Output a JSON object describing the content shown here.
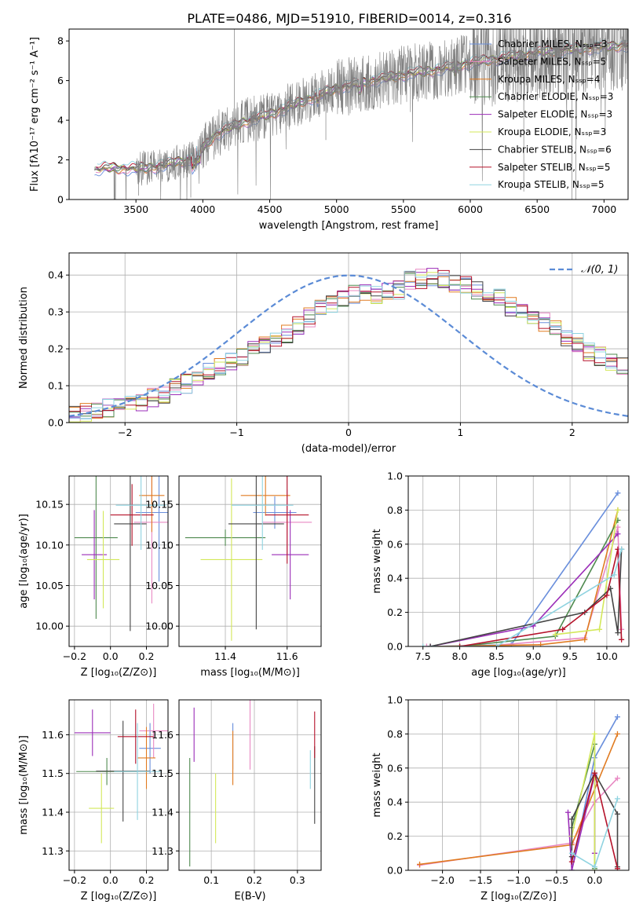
{
  "figure": {
    "title": "PLATE=0486, MJD=51910, FIBERID=0014, z=0.316"
  },
  "colors": {
    "Chabrier MILES": "#6a8fdc",
    "Salpeter MILES": "#e889c3",
    "Kroupa MILES": "#e07b21",
    "Chabrier ELODIE": "#4f8a4f",
    "Salpeter ELODIE": "#9b2db8",
    "Kroupa ELODIE": "#d3e85a",
    "Chabrier STELIB": "#444444",
    "Salpeter STELIB": "#b5122a",
    "Kroupa STELIB": "#8fd3e0",
    "data": "#808080",
    "normal": "#5b8bd6",
    "grid": "#b0b0b0"
  },
  "chart_data": [
    {
      "type": "line",
      "panel": "spectrum",
      "xlabel": "wavelength [Angstrom, rest frame]",
      "ylabel": "Flux [fλ10⁻¹⁷ erg cm⁻² s⁻¹ A⁻¹]",
      "xlim": [
        3000,
        7180
      ],
      "ylim": [
        0,
        8.6
      ],
      "xticks": [
        3500,
        4000,
        4500,
        5000,
        5500,
        6000,
        6500,
        7000
      ],
      "yticks": [
        0,
        2,
        4,
        6,
        8
      ],
      "continuum_x": [
        3190,
        3300,
        3500,
        3700,
        3800,
        3900,
        3950,
        4000,
        4100,
        4300,
        4500,
        4800,
        5000,
        5200,
        5500,
        5800,
        6000,
        6300,
        6600,
        6800,
        7000,
        7180
      ],
      "continuum_y": [
        1.5,
        1.6,
        1.55,
        1.7,
        1.9,
        2.0,
        2.3,
        2.6,
        3.3,
        3.9,
        4.3,
        5.1,
        5.6,
        5.9,
        6.3,
        6.6,
        6.9,
        7.2,
        7.5,
        7.6,
        7.7,
        7.8
      ],
      "legend": [
        {
          "label": "Chabrier MILES, Nₛₛₚ=3",
          "model": "Chabrier MILES"
        },
        {
          "label": "Salpeter MILES, Nₛₛₚ=5",
          "model": "Salpeter MILES"
        },
        {
          "label": "Kroupa MILES, Nₛₛₚ=4",
          "model": "Kroupa MILES"
        },
        {
          "label": "Chabrier ELODIE, Nₛₛₚ=3",
          "model": "Chabrier ELODIE"
        },
        {
          "label": "Salpeter ELODIE, Nₛₛₚ=3",
          "model": "Salpeter ELODIE"
        },
        {
          "label": "Kroupa ELODIE, Nₛₛₚ=3",
          "model": "Kroupa ELODIE"
        },
        {
          "label": "Chabrier STELIB, Nₛₛₚ=6",
          "model": "Chabrier STELIB"
        },
        {
          "label": "Salpeter STELIB, Nₛₛₚ=5",
          "model": "Salpeter STELIB"
        },
        {
          "label": "Kroupa STELIB, Nₛₛₚ=5",
          "model": "Kroupa STELIB"
        }
      ],
      "grid": false
    },
    {
      "type": "histogram",
      "panel": "residuals",
      "xlabel": "(data-model)/error",
      "ylabel": "Normed distribution",
      "xlim": [
        -2.5,
        2.5
      ],
      "ylim": [
        0,
        0.46
      ],
      "xticks": [
        -2,
        -1,
        0,
        1,
        2
      ],
      "yticks": [
        0.0,
        0.1,
        0.2,
        0.3,
        0.4
      ],
      "legend": "𝒩(0, 1)",
      "bin_edges_start": -2.5,
      "bin_width": 0.1,
      "base_values": [
        0.025,
        0.03,
        0.035,
        0.037,
        0.04,
        0.05,
        0.058,
        0.066,
        0.078,
        0.092,
        0.105,
        0.12,
        0.135,
        0.15,
        0.165,
        0.18,
        0.195,
        0.21,
        0.225,
        0.242,
        0.262,
        0.285,
        0.305,
        0.322,
        0.338,
        0.35,
        0.355,
        0.35,
        0.35,
        0.36,
        0.385,
        0.39,
        0.395,
        0.39,
        0.38,
        0.37,
        0.36,
        0.35,
        0.335,
        0.315,
        0.3,
        0.285,
        0.27,
        0.255,
        0.235,
        0.215,
        0.195,
        0.178,
        0.162,
        0.148
      ],
      "grid": true
    },
    {
      "type": "errorbar",
      "panel": "age-vs-Z",
      "xlabel": "Z [log₁₀(Z/Z⊙)]",
      "ylabel": "age  [log₁₀(age/yr)]",
      "xlim": [
        -0.23,
        0.32
      ],
      "ylim": [
        9.975,
        10.185
      ],
      "xticks": [
        -0.2,
        0.0,
        0.2
      ],
      "yticks": [
        10.0,
        10.05,
        10.1,
        10.15
      ],
      "points": [
        {
          "model": "Chabrier MILES",
          "x": 0.27,
          "y": 10.14,
          "xerr": 0.13,
          "yerr": 0.085
        },
        {
          "model": "Salpeter MILES",
          "x": 0.23,
          "y": 10.128,
          "xerr": 0.1,
          "yerr": 0.1
        },
        {
          "model": "Kroupa MILES",
          "x": 0.23,
          "y": 10.161,
          "xerr": 0.07,
          "yerr": 0.045
        },
        {
          "model": "Chabrier ELODIE",
          "x": -0.08,
          "y": 10.109,
          "xerr": 0.12,
          "yerr": 0.1
        },
        {
          "model": "Salpeter ELODIE",
          "x": -0.09,
          "y": 10.088,
          "xerr": 0.07,
          "yerr": 0.055
        },
        {
          "model": "Kroupa ELODIE",
          "x": -0.04,
          "y": 10.082,
          "xerr": 0.09,
          "yerr": 0.06
        },
        {
          "model": "Chabrier STELIB",
          "x": 0.11,
          "y": 10.126,
          "xerr": 0.09,
          "yerr": 0.132
        },
        {
          "model": "Salpeter STELIB",
          "x": 0.12,
          "y": 10.137,
          "xerr": 0.12,
          "yerr": 0.038
        },
        {
          "model": "Kroupa STELIB",
          "x": 0.17,
          "y": 10.149,
          "xerr": 0.14,
          "yerr": 0.055
        }
      ],
      "grid": true
    },
    {
      "type": "errorbar",
      "panel": "age-vs-mass",
      "xlabel": "mass [log₁₀(M/M⊙)]",
      "ylabel": "",
      "xlim": [
        11.25,
        11.71
      ],
      "ylim": [
        9.975,
        10.185
      ],
      "xticks": [
        11.4,
        11.6
      ],
      "yticks": [
        10.0,
        10.05,
        10.1,
        10.15
      ],
      "points": [
        {
          "model": "Chabrier MILES",
          "x": 11.56,
          "y": 10.14,
          "xerr": 0.07,
          "yerr": 0.02
        },
        {
          "model": "Salpeter MILES",
          "x": 11.6,
          "y": 10.128,
          "xerr": 0.08,
          "yerr": 0.04
        },
        {
          "model": "Kroupa MILES",
          "x": 11.53,
          "y": 10.161,
          "xerr": 0.08,
          "yerr": 0.025
        },
        {
          "model": "Chabrier ELODIE",
          "x": 11.4,
          "y": 10.109,
          "xerr": 0.13,
          "yerr": 0.01
        },
        {
          "model": "Salpeter ELODIE",
          "x": 11.61,
          "y": 10.088,
          "xerr": 0.06,
          "yerr": 0.055
        },
        {
          "model": "Kroupa ELODIE",
          "x": 11.42,
          "y": 10.082,
          "xerr": 0.1,
          "yerr": 0.1
        },
        {
          "model": "Chabrier STELIB",
          "x": 11.5,
          "y": 10.126,
          "xerr": 0.09,
          "yerr": 0.13
        },
        {
          "model": "Salpeter STELIB",
          "x": 11.6,
          "y": 10.137,
          "xerr": 0.07,
          "yerr": 0.06
        },
        {
          "model": "Kroupa STELIB",
          "x": 11.52,
          "y": 10.149,
          "xerr": 0.1,
          "yerr": 0.055
        }
      ],
      "grid": true
    },
    {
      "type": "line",
      "panel": "weight-vs-age",
      "xlabel": "age  [log₁₀(age/yr)]",
      "ylabel": "mass weight",
      "xlim": [
        7.3,
        10.3
      ],
      "ylim": [
        0,
        1.0
      ],
      "xticks": [
        7.5,
        8.0,
        8.5,
        9.0,
        9.5,
        10.0
      ],
      "yticks": [
        0.0,
        0.2,
        0.4,
        0.6,
        0.8,
        1.0
      ],
      "series": [
        {
          "model": "Chabrier MILES",
          "x": [
            7.6,
            8.7,
            10.15
          ],
          "y": [
            0.0,
            0.01,
            0.9
          ]
        },
        {
          "model": "Salpeter MILES",
          "x": [
            7.55,
            8.3,
            9.7,
            10.15,
            10.2
          ],
          "y": [
            0.0,
            0.0,
            0.05,
            0.7,
            0.1
          ]
        },
        {
          "model": "Kroupa MILES",
          "x": [
            7.6,
            9.1,
            9.7,
            10.15
          ],
          "y": [
            0.0,
            0.01,
            0.04,
            0.8
          ]
        },
        {
          "model": "Chabrier ELODIE",
          "x": [
            8.0,
            9.3,
            10.15
          ],
          "y": [
            0.0,
            0.06,
            0.74
          ]
        },
        {
          "model": "Salpeter ELODIE",
          "x": [
            7.6,
            9.0,
            10.15
          ],
          "y": [
            0.0,
            0.12,
            0.66
          ]
        },
        {
          "model": "Kroupa ELODIE",
          "x": [
            9.3,
            9.9,
            10.15
          ],
          "y": [
            0.07,
            0.1,
            0.8
          ]
        },
        {
          "model": "Chabrier STELIB",
          "x": [
            7.6,
            9.7,
            10.05,
            10.15,
            10.2
          ],
          "y": [
            0.0,
            0.2,
            0.34,
            0.08,
            0.57
          ]
        },
        {
          "model": "Salpeter STELIB",
          "x": [
            8.0,
            9.4,
            10.0,
            10.15,
            10.2
          ],
          "y": [
            0.0,
            0.1,
            0.3,
            0.57,
            0.04
          ]
        },
        {
          "model": "Kroupa STELIB",
          "x": [
            7.5,
            8.5,
            10.1,
            10.2
          ],
          "y": [
            0.0,
            0.0,
            0.42,
            0.57
          ]
        }
      ],
      "grid": true
    },
    {
      "type": "errorbar",
      "panel": "mass-vs-Z",
      "xlabel": "Z [log₁₀(Z/Z⊙)]",
      "ylabel": "mass [log₁₀(M/M⊙)]",
      "xlim": [
        -0.23,
        0.32
      ],
      "ylim": [
        11.25,
        11.69
      ],
      "xticks": [
        -0.2,
        0.0,
        0.2
      ],
      "yticks": [
        11.3,
        11.4,
        11.5,
        11.6
      ],
      "points": [
        {
          "model": "Chabrier MILES",
          "x": 0.22,
          "y": 11.565,
          "xerr": 0.06,
          "yerr": 0.065
        },
        {
          "model": "Salpeter MILES",
          "x": 0.24,
          "y": 11.61,
          "xerr": 0.08,
          "yerr": 0.07
        },
        {
          "model": "Kroupa MILES",
          "x": 0.2,
          "y": 11.54,
          "xerr": 0.05,
          "yerr": 0.08
        },
        {
          "model": "Chabrier ELODIE",
          "x": -0.02,
          "y": 11.505,
          "xerr": 0.17,
          "yerr": 0.035
        },
        {
          "model": "Salpeter ELODIE",
          "x": -0.1,
          "y": 11.605,
          "xerr": 0.1,
          "yerr": 0.06
        },
        {
          "model": "Kroupa ELODIE",
          "x": -0.05,
          "y": 11.41,
          "xerr": 0.07,
          "yerr": 0.09
        },
        {
          "model": "Chabrier STELIB",
          "x": 0.07,
          "y": 11.506,
          "xerr": 0.15,
          "yerr": 0.13
        },
        {
          "model": "Salpeter STELIB",
          "x": 0.14,
          "y": 11.595,
          "xerr": 0.1,
          "yerr": 0.07
        },
        {
          "model": "Kroupa STELIB",
          "x": 0.15,
          "y": 11.505,
          "xerr": 0.13,
          "yerr": 0.125
        }
      ],
      "grid": true
    },
    {
      "type": "errorbar",
      "panel": "mass-vs-EBV",
      "xlabel": "E(B-V)",
      "ylabel": "",
      "xlim": [
        0.025,
        0.355
      ],
      "ylim": [
        11.25,
        11.69
      ],
      "xticks": [
        0.1,
        0.2,
        0.3
      ],
      "yticks": [
        11.3,
        11.4,
        11.5,
        11.6
      ],
      "points": [
        {
          "model": "Chabrier MILES",
          "x": 0.15,
          "y": 11.57,
          "xerr": 0,
          "yerr": 0.06
        },
        {
          "model": "Salpeter MILES",
          "x": 0.19,
          "y": 11.6,
          "xerr": 0,
          "yerr": 0.09
        },
        {
          "model": "Kroupa MILES",
          "x": 0.15,
          "y": 11.54,
          "xerr": 0,
          "yerr": 0.07
        },
        {
          "model": "Chabrier ELODIE",
          "x": 0.05,
          "y": 11.4,
          "xerr": 0,
          "yerr": 0.14
        },
        {
          "model": "Salpeter ELODIE",
          "x": 0.06,
          "y": 11.6,
          "xerr": 0,
          "yerr": 0.07
        },
        {
          "model": "Kroupa ELODIE",
          "x": 0.11,
          "y": 11.41,
          "xerr": 0,
          "yerr": 0.09
        },
        {
          "model": "Chabrier STELIB",
          "x": 0.34,
          "y": 11.47,
          "xerr": 0,
          "yerr": 0.1
        },
        {
          "model": "Salpeter STELIB",
          "x": 0.34,
          "y": 11.6,
          "xerr": 0,
          "yerr": 0.06
        },
        {
          "model": "Kroupa STELIB",
          "x": 0.33,
          "y": 11.51,
          "xerr": 0,
          "yerr": 0.05
        }
      ],
      "grid": true
    },
    {
      "type": "line",
      "panel": "weight-vs-Z",
      "xlabel": "Z [log₁₀(Z/Z⊙)]",
      "ylabel": "mass weight",
      "xlim": [
        -2.45,
        0.45
      ],
      "ylim": [
        0,
        1.0
      ],
      "xticks": [
        -2.0,
        -1.5,
        -1.0,
        -0.5,
        0.0
      ],
      "yticks": [
        0.0,
        0.2,
        0.4,
        0.6,
        0.8,
        1.0
      ],
      "series": [
        {
          "model": "Chabrier MILES",
          "x": [
            -0.3,
            0.0,
            0.3
          ],
          "y": [
            0.0,
            0.66,
            0.9
          ]
        },
        {
          "model": "Salpeter MILES",
          "x": [
            -2.3,
            -0.3,
            0.0,
            0.3
          ],
          "y": [
            0.03,
            0.16,
            0.4,
            0.54
          ]
        },
        {
          "model": "Kroupa MILES",
          "x": [
            -2.3,
            -0.3,
            0.3
          ],
          "y": [
            0.035,
            0.15,
            0.8
          ]
        },
        {
          "model": "Chabrier ELODIE",
          "x": [
            -0.3,
            0.0,
            0.0
          ],
          "y": [
            0.25,
            0.74,
            0.01
          ]
        },
        {
          "model": "Salpeter ELODIE",
          "x": [
            -0.35,
            -0.3,
            0.0,
            0.0
          ],
          "y": [
            0.34,
            0.0,
            0.56,
            0.1
          ]
        },
        {
          "model": "Kroupa ELODIE",
          "x": [
            -0.3,
            0.0,
            0.0
          ],
          "y": [
            0.2,
            0.8,
            0.0
          ]
        },
        {
          "model": "Chabrier STELIB",
          "x": [
            -0.3,
            -0.3,
            0.0,
            0.3,
            0.3
          ],
          "y": [
            0.08,
            0.3,
            0.57,
            0.33,
            0.02
          ]
        },
        {
          "model": "Salpeter STELIB",
          "x": [
            -0.3,
            0.0,
            0.3
          ],
          "y": [
            0.05,
            0.57,
            0.01
          ]
        },
        {
          "model": "Kroupa STELIB",
          "x": [
            -0.3,
            0.0,
            0.3
          ],
          "y": [
            0.1,
            0.02,
            0.42
          ]
        }
      ],
      "grid": true
    }
  ]
}
